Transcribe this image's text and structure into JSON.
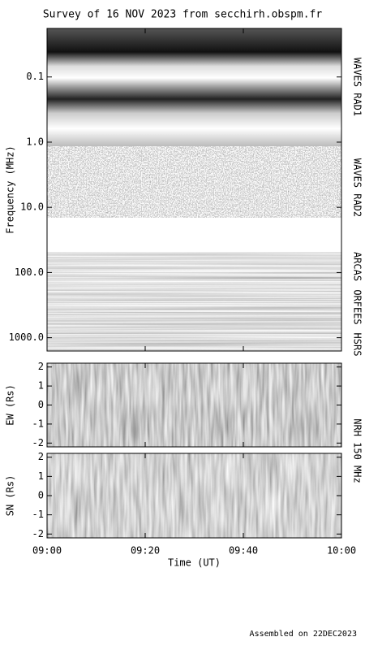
{
  "title": "Survey of 16 NOV 2023 from secchirh.obspm.fr",
  "footer": "Assembled on 22DEC2023",
  "chart_data": [
    {
      "type": "spectrogram",
      "ylabel": "Frequency (MHz)",
      "log_y": true,
      "y_inverted": true,
      "ylim": [
        0.018,
        1600
      ],
      "yticks": [
        0.1,
        {
          "value": 1,
          "label": "1.0"
        },
        {
          "value": 10,
          "label": "10.0"
        },
        {
          "value": 100,
          "label": "100.0"
        },
        {
          "value": 1000,
          "label": "1000.0"
        }
      ],
      "instruments": [
        "WAVES RAD1",
        "WAVES RAD2",
        "ARCAS",
        "ORFEES",
        "HSRS"
      ]
    },
    {
      "type": "heatmap",
      "ylabel": "EW (Rs)",
      "ylim": [
        -2.2,
        2.2
      ],
      "yticks": [
        -2,
        -1,
        0,
        1,
        2
      ],
      "instrument": "NRH 150 MHz"
    },
    {
      "type": "heatmap",
      "ylabel": "SN (Rs)",
      "ylim": [
        -2.2,
        2.2
      ],
      "yticks": [
        -2,
        -1,
        0,
        1,
        2
      ],
      "xlabel": "Time (UT)",
      "xlim": [
        "09:00",
        "10:00"
      ],
      "xticks": [
        "09:00",
        "09:20",
        "09:40",
        "10:00"
      ]
    }
  ]
}
